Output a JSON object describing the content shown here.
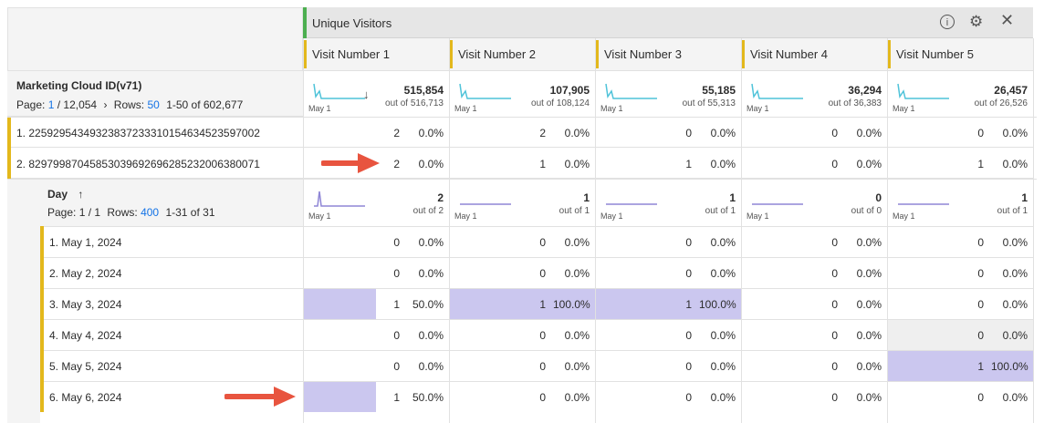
{
  "panel": {
    "title": "Unique Visitors",
    "info_icon": "info-icon",
    "settings_icon": "gear-icon",
    "close_icon": "close-icon"
  },
  "columns": [
    "Visit Number 1",
    "Visit Number 2",
    "Visit Number 3",
    "Visit Number 4",
    "Visit Number 5"
  ],
  "marketing": {
    "title": "Marketing Cloud ID(v71)",
    "page_label": "Page:",
    "page_current": "1",
    "page_total": "/ 12,054",
    "rows_label": "Rows:",
    "rows_value": "50",
    "range": "1-50 of 602,677",
    "totals": [
      {
        "value": "515,854",
        "out_of": "out of 516,713"
      },
      {
        "value": "107,905",
        "out_of": "out of 108,124"
      },
      {
        "value": "55,185",
        "out_of": "out of 55,313"
      },
      {
        "value": "36,294",
        "out_of": "out of 36,383"
      },
      {
        "value": "26,457",
        "out_of": "out of 26,526"
      }
    ],
    "spark_label": "May 1"
  },
  "rows": [
    {
      "label": "1.  225929543493238372333101546345235970​02",
      "cells": [
        [
          "2",
          "0.0%"
        ],
        [
          "2",
          "0.0%"
        ],
        [
          "0",
          "0.0%"
        ],
        [
          "0",
          "0.0%"
        ],
        [
          "0",
          "0.0%"
        ]
      ]
    },
    {
      "label": "2.  82979987045853039692696285232006380071",
      "cells": [
        [
          "2",
          "0.0%"
        ],
        [
          "1",
          "0.0%"
        ],
        [
          "1",
          "0.0%"
        ],
        [
          "0",
          "0.0%"
        ],
        [
          "1",
          "0.0%"
        ]
      ]
    }
  ],
  "day": {
    "title": "Day",
    "page_label": "Page: 1 / 1",
    "rows_label": "Rows:",
    "rows_value": "400",
    "range": "1-31 of 31",
    "totals": [
      {
        "value": "2",
        "out_of": "out of 2"
      },
      {
        "value": "1",
        "out_of": "out of 1"
      },
      {
        "value": "1",
        "out_of": "out of 1"
      },
      {
        "value": "0",
        "out_of": "out of 0"
      },
      {
        "value": "1",
        "out_of": "out of 1"
      }
    ],
    "spark_label": "May 1",
    "rows": [
      {
        "label": "1.  May 1, 2024",
        "cells": [
          [
            "0",
            "0.0%"
          ],
          [
            "0",
            "0.0%"
          ],
          [
            "0",
            "0.0%"
          ],
          [
            "0",
            "0.0%"
          ],
          [
            "0",
            "0.0%"
          ]
        ]
      },
      {
        "label": "2.  May 2, 2024",
        "cells": [
          [
            "0",
            "0.0%"
          ],
          [
            "0",
            "0.0%"
          ],
          [
            "0",
            "0.0%"
          ],
          [
            "0",
            "0.0%"
          ],
          [
            "0",
            "0.0%"
          ]
        ]
      },
      {
        "label": "3.  May 3, 2024",
        "cells": [
          [
            "1",
            "50.0%"
          ],
          [
            "1",
            "100.0%"
          ],
          [
            "1",
            "100.0%"
          ],
          [
            "0",
            "0.0%"
          ],
          [
            "0",
            "0.0%"
          ]
        ]
      },
      {
        "label": "4.  May 4, 2024",
        "cells": [
          [
            "0",
            "0.0%"
          ],
          [
            "0",
            "0.0%"
          ],
          [
            "0",
            "0.0%"
          ],
          [
            "0",
            "0.0%"
          ],
          [
            "0",
            "0.0%"
          ]
        ]
      },
      {
        "label": "5.  May 5, 2024",
        "cells": [
          [
            "0",
            "0.0%"
          ],
          [
            "0",
            "0.0%"
          ],
          [
            "0",
            "0.0%"
          ],
          [
            "0",
            "0.0%"
          ],
          [
            "1",
            "100.0%"
          ]
        ]
      },
      {
        "label": "6.  May 6, 2024",
        "cells": [
          [
            "1",
            "50.0%"
          ],
          [
            "0",
            "0.0%"
          ],
          [
            "0",
            "0.0%"
          ],
          [
            "0",
            "0.0%"
          ],
          [
            "0",
            "0.0%"
          ]
        ]
      }
    ]
  },
  "colors": {
    "accent_yellow": "#e3b81c",
    "highlight": "#cbc7ef",
    "green": "#4caf50",
    "arrow": "#e8543f",
    "teal": "#4fc3d9",
    "purple": "#8f86d6"
  }
}
